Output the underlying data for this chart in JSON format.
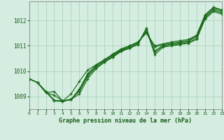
{
  "title": "Graphe pression niveau de la mer (hPa)",
  "xlabel_hours": [
    0,
    1,
    2,
    3,
    4,
    5,
    6,
    7,
    8,
    9,
    10,
    11,
    12,
    13,
    14,
    15,
    16,
    17,
    18,
    19,
    20,
    21,
    22,
    23
  ],
  "ylim": [
    1008.5,
    1012.75
  ],
  "xlim": [
    0,
    23
  ],
  "yticks": [
    1009,
    1010,
    1011,
    1012
  ],
  "background_color": "#d4ede0",
  "grid_color": "#b0d8c0",
  "line_color": "#1a6b1a",
  "marker_color": "#1a6b1a",
  "text_color": "#1a5c1a",
  "series": [
    [
      1009.7,
      1009.55,
      1009.2,
      1008.85,
      1008.82,
      1008.88,
      1009.3,
      1009.9,
      1010.25,
      1010.45,
      1010.65,
      1010.85,
      1011.0,
      1011.15,
      1011.55,
      1010.95,
      1011.05,
      1011.1,
      1011.15,
      1011.2,
      1011.4,
      1012.2,
      1012.5,
      1012.4
    ],
    [
      1009.7,
      1009.55,
      1009.15,
      1009.2,
      1008.82,
      1008.88,
      1009.1,
      1009.7,
      1010.1,
      1010.35,
      1010.55,
      1010.78,
      1010.9,
      1011.05,
      1011.65,
      1010.65,
      1010.95,
      1011.0,
      1011.05,
      1011.1,
      1011.25,
      1012.05,
      1012.35,
      1012.25
    ],
    [
      1009.7,
      1009.55,
      1009.2,
      1008.85,
      1008.82,
      1008.9,
      1009.2,
      1009.8,
      1010.15,
      1010.38,
      1010.58,
      1010.8,
      1010.92,
      1011.08,
      1011.7,
      1010.75,
      1010.98,
      1011.02,
      1011.08,
      1011.13,
      1011.28,
      1012.1,
      1012.4,
      1012.3
    ],
    [
      1009.7,
      1009.55,
      1009.18,
      1008.83,
      1008.8,
      1008.88,
      1009.25,
      1009.85,
      1010.2,
      1010.42,
      1010.62,
      1010.82,
      1010.96,
      1011.12,
      1011.55,
      1010.8,
      1011.02,
      1011.07,
      1011.12,
      1011.18,
      1011.35,
      1012.15,
      1012.45,
      1012.35
    ],
    [
      1009.7,
      1009.55,
      1009.15,
      1009.05,
      1008.82,
      1009.1,
      1009.6,
      1010.05,
      1010.25,
      1010.45,
      1010.68,
      1010.88,
      1011.0,
      1011.15,
      1011.5,
      1011.0,
      1011.08,
      1011.15,
      1011.2,
      1011.25,
      1011.42,
      1012.22,
      1012.52,
      1012.42
    ]
  ]
}
